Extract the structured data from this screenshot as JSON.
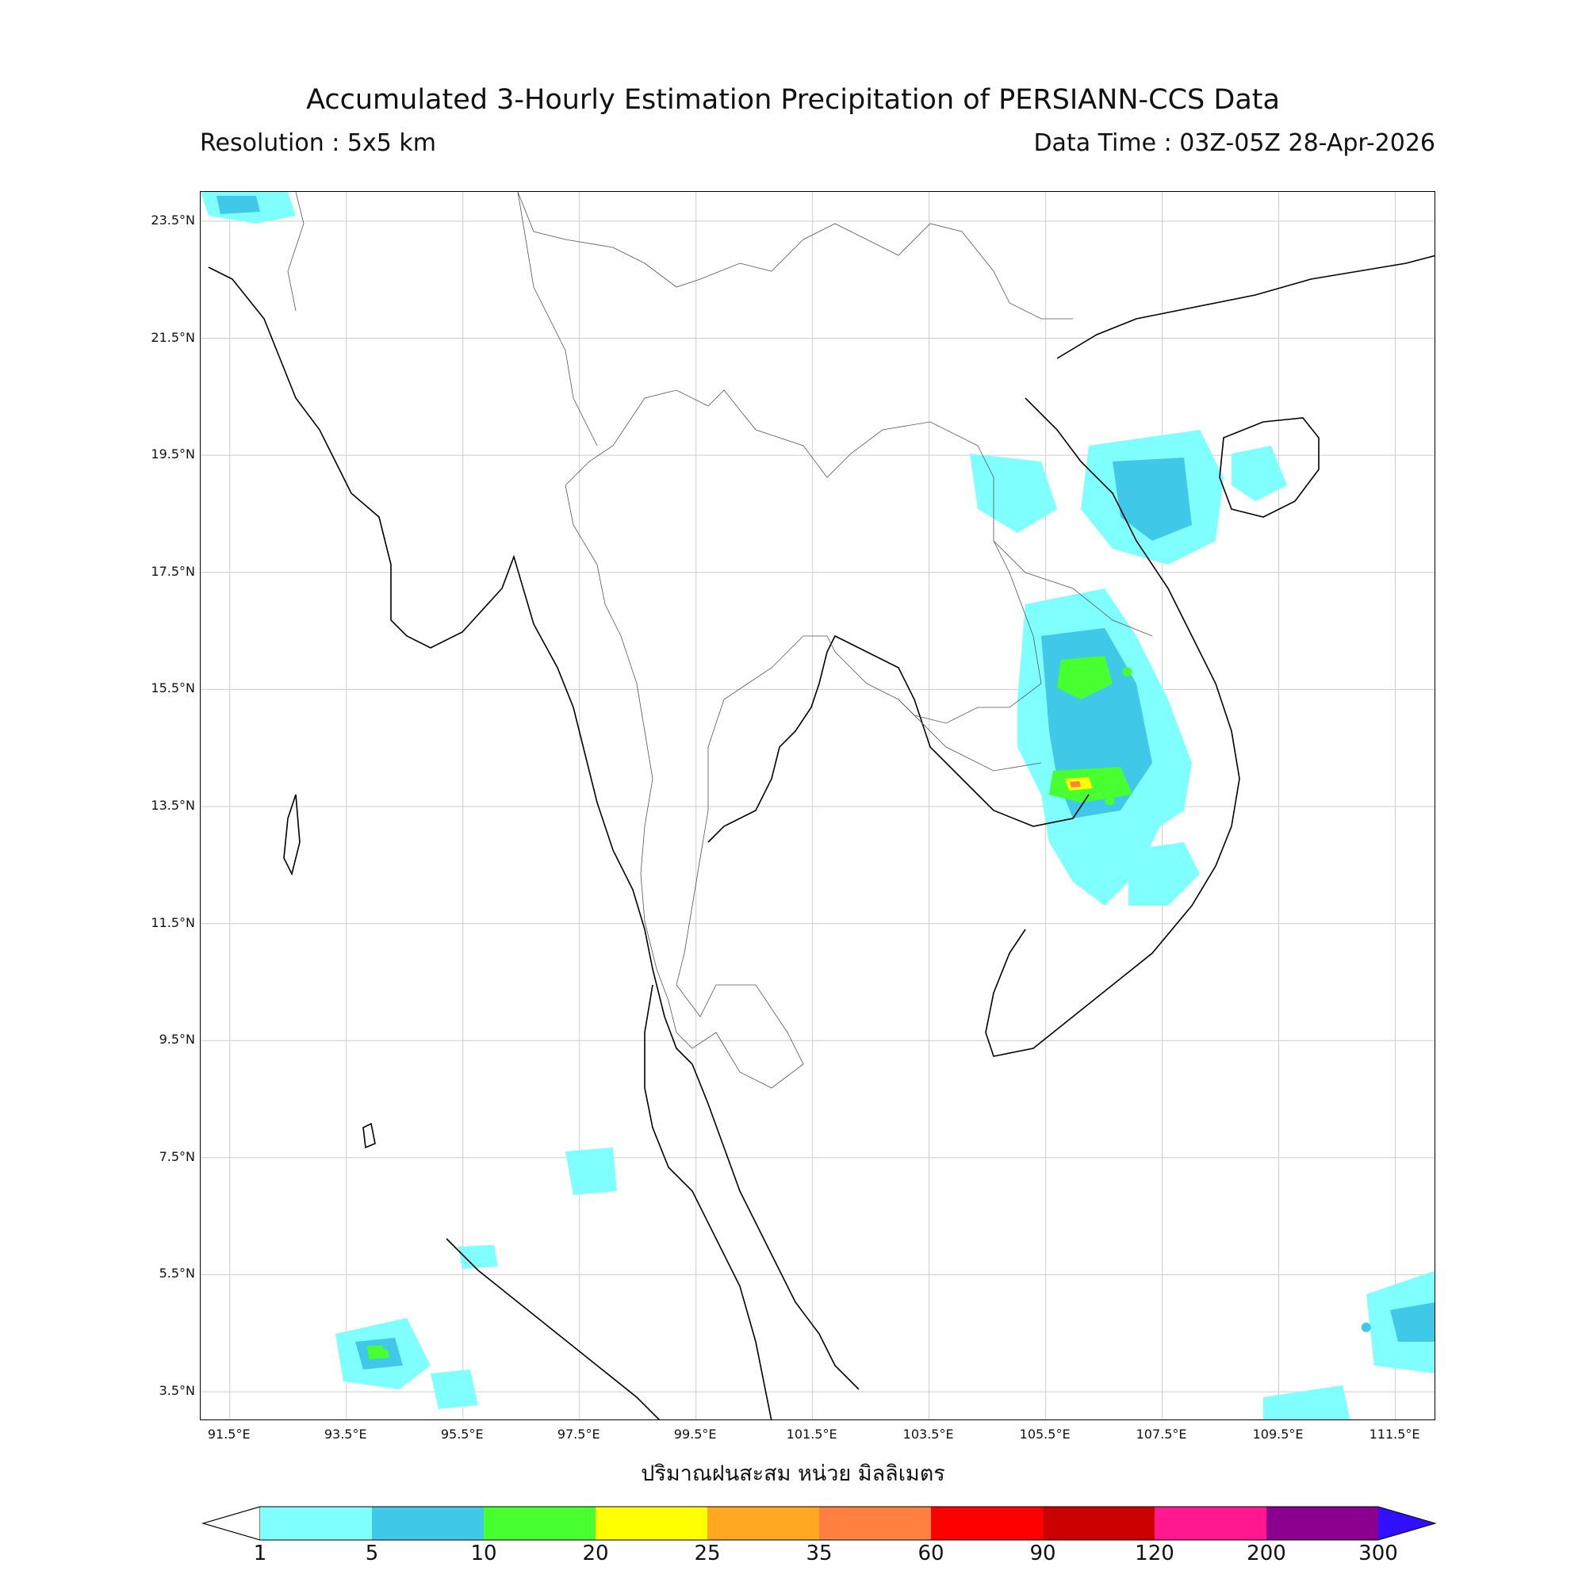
{
  "header": {
    "title": "Accumulated 3-Hourly Estimation Precipitation of PERSIANN-CCS Data",
    "resolution": "Resolution : 5x5 km",
    "data_time": "Data Time : 03Z-05Z 28-Apr-2026"
  },
  "map": {
    "lon_range": [
      91.0,
      112.2
    ],
    "lat_range": [
      3.0,
      24.0
    ],
    "lat_ticks": [
      "23.5°N",
      "21.5°N",
      "19.5°N",
      "17.5°N",
      "15.5°N",
      "13.5°N",
      "11.5°N",
      "9.5°N",
      "7.5°N",
      "5.5°N",
      "3.5°N"
    ],
    "lon_ticks": [
      "91.5°E",
      "93.5°E",
      "95.5°E",
      "97.5°E",
      "99.5°E",
      "101.5°E",
      "103.5°E",
      "105.5°E",
      "107.5°E",
      "109.5°E",
      "111.5°E"
    ],
    "xaxis_title": "ปริมาณฝนสะสม หน่วย มิลลิเมตร",
    "grid": true
  },
  "legend": {
    "levels": [
      "1",
      "5",
      "10",
      "20",
      "25",
      "35",
      "60",
      "90",
      "120",
      "200",
      "300"
    ],
    "colors": [
      "#80ffff",
      "#40c8e8",
      "#48ff30",
      "#ffff00",
      "#ffa820",
      "#ff8040",
      "#ff0000",
      "#cc0000",
      "#ff1890",
      "#8c0090"
    ],
    "below_color": "#ffffff",
    "above_color": "#3010ff"
  },
  "rain_cells": [
    {
      "lon": 106.9,
      "lat": 15.8,
      "level": 2
    },
    {
      "lon": 106.6,
      "lat": 13.6,
      "level": 2
    },
    {
      "lon": 107.6,
      "lat": 19.2,
      "level": 1
    },
    {
      "lon": 94.2,
      "lat": 4.3,
      "level": 1
    },
    {
      "lon": 111.0,
      "lat": 4.6,
      "level": 1
    }
  ]
}
